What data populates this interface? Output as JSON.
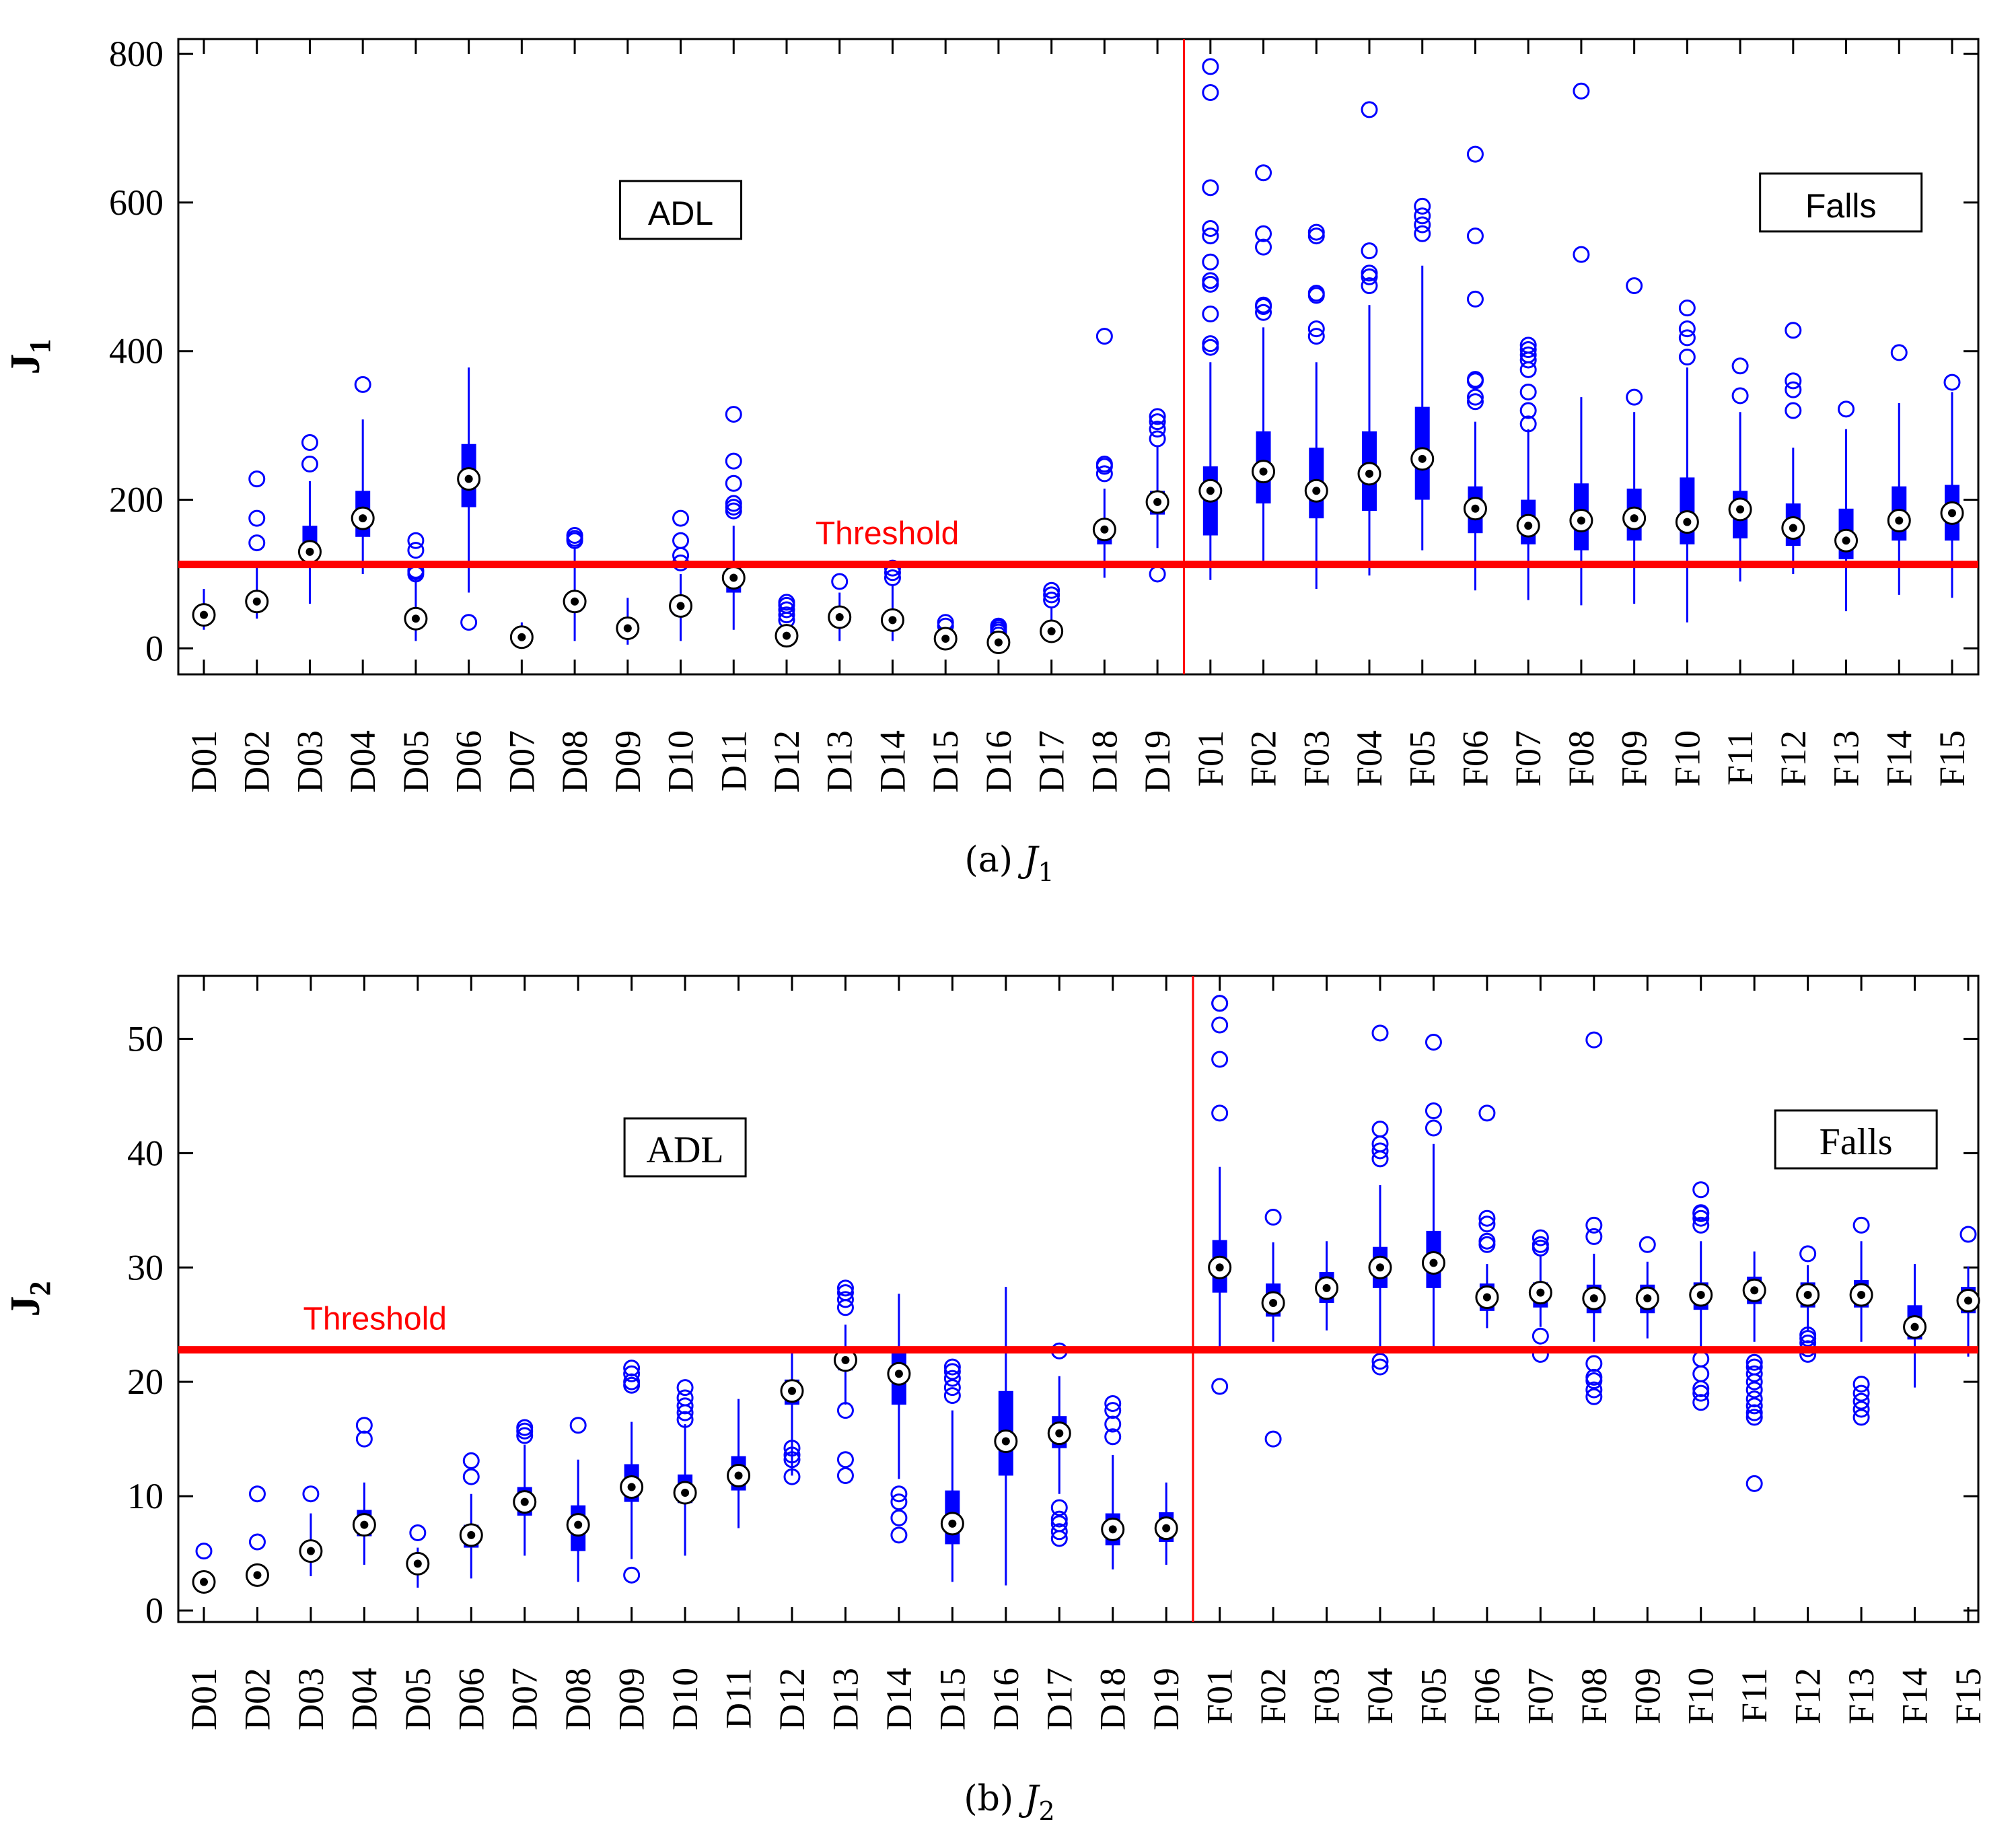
{
  "chart_data": [
    {
      "type": "box",
      "panel": "a",
      "caption_prefix": "(a)",
      "caption_symbol": "J",
      "caption_sub": "1",
      "ylabel": "J",
      "ylabel_sub": "1",
      "ylim": [
        -35,
        820
      ],
      "yticks": [
        0,
        200,
        400,
        600,
        800
      ],
      "categories": [
        "D01",
        "D02",
        "D03",
        "D04",
        "D05",
        "D06",
        "D07",
        "D08",
        "D09",
        "D10",
        "D11",
        "D12",
        "D13",
        "D14",
        "D15",
        "D16",
        "D17",
        "D18",
        "D19",
        "F01",
        "F02",
        "F03",
        "F04",
        "F05",
        "F06",
        "F07",
        "F08",
        "F09",
        "F10",
        "F11",
        "F12",
        "F13",
        "F14",
        "F15"
      ],
      "threshold": {
        "value": 113,
        "label": "Threshold",
        "label_category_index": 12.9
      },
      "divider_after_index": 18,
      "annotations": [
        {
          "text": "ADL",
          "category_index": 9,
          "value": 590
        },
        {
          "text": "Falls",
          "category_index": 30.9,
          "value": 600
        }
      ],
      "boxes": [
        {
          "min": 25,
          "q1": 40,
          "median": 45,
          "q3": 50,
          "max": 80,
          "outliers": []
        },
        {
          "min": 40,
          "q1": 55,
          "median": 63,
          "q3": 70,
          "max": 110,
          "outliers": [
            142,
            175,
            228
          ]
        },
        {
          "min": 60,
          "q1": 115,
          "median": 130,
          "q3": 165,
          "max": 225,
          "outliers": [
            248,
            277
          ]
        },
        {
          "min": 100,
          "q1": 150,
          "median": 175,
          "q3": 212,
          "max": 308,
          "outliers": [
            355
          ]
        },
        {
          "min": 10,
          "q1": 35,
          "median": 40,
          "q3": 45,
          "max": 95,
          "outliers": [
            100,
            103,
            105,
            132,
            145
          ]
        },
        {
          "min": 75,
          "q1": 190,
          "median": 228,
          "q3": 275,
          "max": 378,
          "outliers": [
            35
          ]
        },
        {
          "min": 5,
          "q1": 10,
          "median": 15,
          "q3": 18,
          "max": 35,
          "outliers": []
        },
        {
          "min": 10,
          "q1": 50,
          "median": 63,
          "q3": 75,
          "max": 135,
          "outliers": [
            145,
            148,
            152
          ]
        },
        {
          "min": 5,
          "q1": 20,
          "median": 27,
          "q3": 32,
          "max": 68,
          "outliers": []
        },
        {
          "min": 10,
          "q1": 45,
          "median": 57,
          "q3": 65,
          "max": 100,
          "outliers": [
            115,
            125,
            145,
            175
          ]
        },
        {
          "min": 25,
          "q1": 75,
          "median": 95,
          "q3": 110,
          "max": 165,
          "outliers": [
            185,
            190,
            195,
            222,
            252,
            315
          ]
        },
        {
          "min": 5,
          "q1": 12,
          "median": 17,
          "q3": 20,
          "max": 30,
          "outliers": [
            38,
            45,
            52,
            58,
            62
          ]
        },
        {
          "min": 10,
          "q1": 35,
          "median": 42,
          "q3": 50,
          "max": 75,
          "outliers": [
            90
          ]
        },
        {
          "min": 10,
          "q1": 30,
          "median": 38,
          "q3": 45,
          "max": 85,
          "outliers": [
            95,
            102,
            108
          ]
        },
        {
          "min": 5,
          "q1": 10,
          "median": 13,
          "q3": 17,
          "max": 25,
          "outliers": [
            30,
            35
          ]
        },
        {
          "min": 3,
          "q1": 5,
          "median": 8,
          "q3": 12,
          "max": 16,
          "outliers": [
            18,
            22,
            25,
            28,
            30
          ]
        },
        {
          "min": 10,
          "q1": 18,
          "median": 23,
          "q3": 28,
          "max": 55,
          "outliers": [
            65,
            72,
            78
          ]
        },
        {
          "min": 95,
          "q1": 140,
          "median": 160,
          "q3": 172,
          "max": 215,
          "outliers": [
            235,
            245,
            248,
            420
          ]
        },
        {
          "min": 135,
          "q1": 180,
          "median": 197,
          "q3": 212,
          "max": 272,
          "outliers": [
            100,
            282,
            295,
            305,
            312
          ]
        },
        {
          "min": 92,
          "q1": 152,
          "median": 212,
          "q3": 245,
          "max": 385,
          "outliers": [
            405,
            410,
            450,
            490,
            495,
            520,
            555,
            565,
            620,
            748,
            783
          ]
        },
        {
          "min": 118,
          "q1": 195,
          "median": 238,
          "q3": 292,
          "max": 432,
          "outliers": [
            452,
            460,
            462,
            540,
            558,
            640
          ]
        },
        {
          "min": 80,
          "q1": 175,
          "median": 212,
          "q3": 270,
          "max": 385,
          "outliers": [
            420,
            430,
            475,
            478,
            555,
            560
          ]
        },
        {
          "min": 98,
          "q1": 185,
          "median": 235,
          "q3": 292,
          "max": 462,
          "outliers": [
            488,
            500,
            505,
            535,
            725
          ]
        },
        {
          "min": 132,
          "q1": 200,
          "median": 255,
          "q3": 325,
          "max": 515,
          "outliers": [
            558,
            570,
            582,
            595
          ]
        },
        {
          "min": 78,
          "q1": 155,
          "median": 188,
          "q3": 218,
          "max": 305,
          "outliers": [
            332,
            338,
            360,
            362,
            470,
            555,
            665
          ]
        },
        {
          "min": 65,
          "q1": 140,
          "median": 165,
          "q3": 200,
          "max": 295,
          "outliers": [
            302,
            320,
            345,
            375,
            388,
            395,
            402,
            408
          ]
        },
        {
          "min": 58,
          "q1": 132,
          "median": 172,
          "q3": 222,
          "max": 338,
          "outliers": [
            530,
            750
          ]
        },
        {
          "min": 60,
          "q1": 145,
          "median": 175,
          "q3": 215,
          "max": 318,
          "outliers": [
            338,
            488
          ]
        },
        {
          "min": 35,
          "q1": 140,
          "median": 170,
          "q3": 230,
          "max": 378,
          "outliers": [
            392,
            418,
            430,
            458
          ]
        },
        {
          "min": 90,
          "q1": 148,
          "median": 187,
          "q3": 212,
          "max": 318,
          "outliers": [
            340,
            380
          ]
        },
        {
          "min": 100,
          "q1": 138,
          "median": 162,
          "q3": 195,
          "max": 270,
          "outliers": [
            320,
            348,
            360,
            428
          ]
        },
        {
          "min": 50,
          "q1": 120,
          "median": 145,
          "q3": 188,
          "max": 295,
          "outliers": [
            322
          ]
        },
        {
          "min": 72,
          "q1": 145,
          "median": 172,
          "q3": 218,
          "max": 330,
          "outliers": [
            398
          ]
        },
        {
          "min": 68,
          "q1": 145,
          "median": 182,
          "q3": 220,
          "max": 345,
          "outliers": [
            358
          ]
        }
      ]
    },
    {
      "type": "box",
      "panel": "b",
      "caption_prefix": "(b)",
      "caption_symbol": "J",
      "caption_sub": "2",
      "ylabel": "J",
      "ylabel_sub": "2",
      "ylim": [
        -1,
        55.5
      ],
      "yticks": [
        0,
        10,
        20,
        30,
        40,
        50
      ],
      "categories": [
        "D01",
        "D02",
        "D03",
        "D04",
        "D05",
        "D06",
        "D07",
        "D08",
        "D09",
        "D10",
        "D11",
        "D12",
        "D13",
        "D14",
        "D15",
        "D16",
        "D17",
        "D18",
        "D19",
        "F01",
        "F02",
        "F03",
        "F04",
        "F05",
        "F06",
        "F07",
        "F08",
        "F09",
        "F10",
        "F11",
        "F12",
        "F13",
        "F14",
        "F15"
      ],
      "threshold": {
        "value": 22.8,
        "label": "Threshold",
        "label_category_index": 3.2
      },
      "divider_after_index": 18,
      "annotations": [
        {
          "text": "ADL",
          "category_index": 9,
          "value": 40.5
        },
        {
          "text": "Falls",
          "category_index": 30.9,
          "value": 41.2
        }
      ],
      "boxes": [
        {
          "min": 1.5,
          "q1": 2.0,
          "median": 2.5,
          "q3": 2.8,
          "max": 3.5,
          "outliers": [
            5.2
          ]
        },
        {
          "min": 2.2,
          "q1": 2.7,
          "median": 3.1,
          "q3": 3.4,
          "max": 4.0,
          "outliers": [
            6.0,
            10.2
          ]
        },
        {
          "min": 3.0,
          "q1": 4.5,
          "median": 5.2,
          "q3": 6.0,
          "max": 8.5,
          "outliers": [
            10.2
          ]
        },
        {
          "min": 4.0,
          "q1": 6.5,
          "median": 7.5,
          "q3": 8.8,
          "max": 11.2,
          "outliers": [
            15.0,
            16.2
          ]
        },
        {
          "min": 2.0,
          "q1": 3.5,
          "median": 4.1,
          "q3": 4.6,
          "max": 5.5,
          "outliers": [
            6.8
          ]
        },
        {
          "min": 2.8,
          "q1": 5.5,
          "median": 6.6,
          "q3": 7.5,
          "max": 10.2,
          "outliers": [
            11.7,
            13.1
          ]
        },
        {
          "min": 4.8,
          "q1": 8.3,
          "median": 9.5,
          "q3": 10.8,
          "max": 14.5,
          "outliers": [
            15.3,
            15.7,
            16.0
          ]
        },
        {
          "min": 2.5,
          "q1": 5.2,
          "median": 7.5,
          "q3": 9.2,
          "max": 13.2,
          "outliers": [
            16.2
          ]
        },
        {
          "min": 4.5,
          "q1": 9.5,
          "median": 10.8,
          "q3": 12.8,
          "max": 16.5,
          "outliers": [
            3.1,
            19.7,
            20.0,
            20.7,
            21.2
          ]
        },
        {
          "min": 4.8,
          "q1": 9.4,
          "median": 10.3,
          "q3": 11.9,
          "max": 16.3,
          "outliers": [
            16.7,
            17.3,
            17.9,
            18.6,
            19.5
          ]
        },
        {
          "min": 7.2,
          "q1": 10.5,
          "median": 11.8,
          "q3": 13.5,
          "max": 18.5,
          "outliers": []
        },
        {
          "min": 11.8,
          "q1": 18.0,
          "median": 19.2,
          "q3": 20.2,
          "max": 22.8,
          "outliers": [
            11.7,
            13.2,
            13.6,
            14.2
          ]
        },
        {
          "min": 18.0,
          "q1": 21.0,
          "median": 21.9,
          "q3": 23.0,
          "max": 25.0,
          "outliers": [
            11.8,
            13.2,
            17.5,
            26.5,
            27.2,
            27.8,
            28.2
          ]
        },
        {
          "min": 11.5,
          "q1": 18.0,
          "median": 20.7,
          "q3": 22.8,
          "max": 27.7,
          "outliers": [
            6.6,
            8.1,
            9.5,
            10.2
          ]
        },
        {
          "min": 2.5,
          "q1": 5.8,
          "median": 7.6,
          "q3": 10.5,
          "max": 17.5,
          "outliers": [
            18.8,
            19.5,
            20.3,
            20.9,
            21.3
          ]
        },
        {
          "min": 2.2,
          "q1": 11.8,
          "median": 14.8,
          "q3": 19.2,
          "max": 28.3,
          "outliers": []
        },
        {
          "min": 10.2,
          "q1": 14.2,
          "median": 15.5,
          "q3": 17.0,
          "max": 20.5,
          "outliers": [
            6.3,
            6.9,
            7.6,
            8.0,
            9.0,
            22.7
          ]
        },
        {
          "min": 3.6,
          "q1": 5.7,
          "median": 7.1,
          "q3": 8.5,
          "max": 13.6,
          "outliers": [
            15.2,
            16.3,
            17.5,
            18.1
          ]
        },
        {
          "min": 4.0,
          "q1": 6.0,
          "median": 7.2,
          "q3": 8.6,
          "max": 11.2,
          "outliers": []
        },
        {
          "min": 23.0,
          "q1": 27.8,
          "median": 30.0,
          "q3": 32.4,
          "max": 38.8,
          "outliers": [
            19.6,
            43.5,
            48.2,
            51.2,
            53.1,
            53.1
          ]
        },
        {
          "min": 23.5,
          "q1": 25.7,
          "median": 26.9,
          "q3": 28.6,
          "max": 32.2,
          "outliers": [
            15.0,
            34.4
          ]
        },
        {
          "min": 24.5,
          "q1": 26.9,
          "median": 28.2,
          "q3": 29.6,
          "max": 32.3,
          "outliers": []
        },
        {
          "min": 22.5,
          "q1": 28.2,
          "median": 30.0,
          "q3": 31.8,
          "max": 37.2,
          "outliers": [
            21.3,
            21.8,
            39.5,
            40.2,
            40.8,
            42.1,
            50.5
          ]
        },
        {
          "min": 23.0,
          "q1": 28.2,
          "median": 30.4,
          "q3": 33.2,
          "max": 40.8,
          "outliers": [
            42.2,
            43.7,
            49.7
          ]
        },
        {
          "min": 24.7,
          "q1": 26.2,
          "median": 27.4,
          "q3": 28.6,
          "max": 30.3,
          "outliers": [
            32.0,
            32.3,
            33.8,
            34.3,
            43.5
          ]
        },
        {
          "min": 24.8,
          "q1": 26.5,
          "median": 27.8,
          "q3": 28.7,
          "max": 31.0,
          "outliers": [
            22.4,
            24.0,
            31.7,
            32.0,
            32.6
          ]
        },
        {
          "min": 23.5,
          "q1": 26.0,
          "median": 27.3,
          "q3": 28.5,
          "max": 31.2,
          "outliers": [
            18.7,
            19.3,
            20.1,
            20.4,
            21.6,
            32.7,
            33.7,
            49.9
          ]
        },
        {
          "min": 23.8,
          "q1": 26.0,
          "median": 27.3,
          "q3": 28.5,
          "max": 30.5,
          "outliers": [
            32.0
          ]
        },
        {
          "min": 22.5,
          "q1": 26.3,
          "median": 27.6,
          "q3": 28.7,
          "max": 32.3,
          "outliers": [
            18.2,
            19.0,
            19.4,
            20.7,
            22.0,
            33.7,
            34.3,
            34.7,
            34.8,
            36.8
          ]
        },
        {
          "min": 23.5,
          "q1": 26.8,
          "median": 28.0,
          "q3": 29.2,
          "max": 31.4,
          "outliers": [
            11.1,
            16.9,
            17.3,
            17.9,
            18.5,
            19.3,
            20.0,
            20.7,
            21.3,
            21.7
          ]
        },
        {
          "min": 24.5,
          "q1": 26.5,
          "median": 27.6,
          "q3": 28.7,
          "max": 30.2,
          "outliers": [
            22.4,
            22.9,
            23.4,
            23.8,
            24.1,
            31.2
          ]
        },
        {
          "min": 23.5,
          "q1": 26.5,
          "median": 27.6,
          "q3": 28.9,
          "max": 32.3,
          "outliers": [
            16.9,
            17.6,
            18.3,
            19.0,
            19.8,
            33.7
          ]
        },
        {
          "min": 19.5,
          "q1": 23.7,
          "median": 24.8,
          "q3": 26.7,
          "max": 30.3,
          "outliers": []
        },
        {
          "min": 22.2,
          "q1": 26.0,
          "median": 27.1,
          "q3": 28.3,
          "max": 30.1,
          "outliers": [
            32.9
          ]
        }
      ]
    }
  ]
}
